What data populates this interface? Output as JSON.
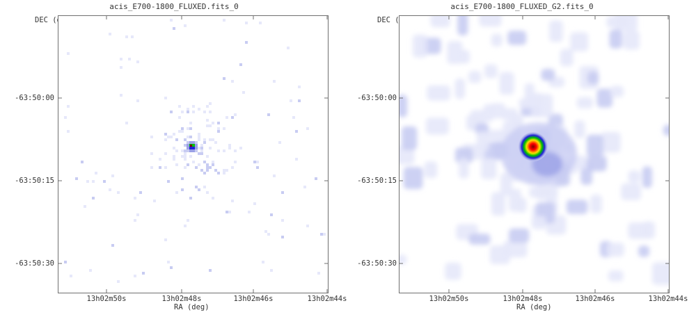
{
  "panels": [
    {
      "title": "acis_E700-1800_FLUXED.fits_0",
      "y_axis_label": "DEC (deg)",
      "x_axis_label": "RA (deg)",
      "y_ticks": [
        "-63:50:00",
        "-63:50:15",
        "-63:50:30"
      ],
      "x_ticks": [
        "13h02m50s",
        "13h02m48s",
        "13h02m46s",
        "13h02m44s"
      ],
      "image": "raw binned counts, sparse single-pixel events around a bright compact source"
    },
    {
      "title": "acis_E700-1800_FLUXED_G2.fits_0",
      "y_axis_label": "DEC (deg)",
      "x_axis_label": "RA (deg)",
      "y_ticks": [
        "-63:50:00",
        "-63:50:15",
        "-63:50:30"
      ],
      "x_ticks": [
        "13h02m50s",
        "13h02m48s",
        "13h02m46s",
        "13h02m44s"
      ],
      "image": "gaussian-smoothed counts, diffuse blobs around a bright compact source"
    }
  ],
  "colormap": [
    "#ffffff",
    "#e6e8fa",
    "#c8ccf2",
    "#9aa0e6",
    "#2020d8",
    "#00c000",
    "#ffe000",
    "#ff0000",
    "#800000"
  ]
}
